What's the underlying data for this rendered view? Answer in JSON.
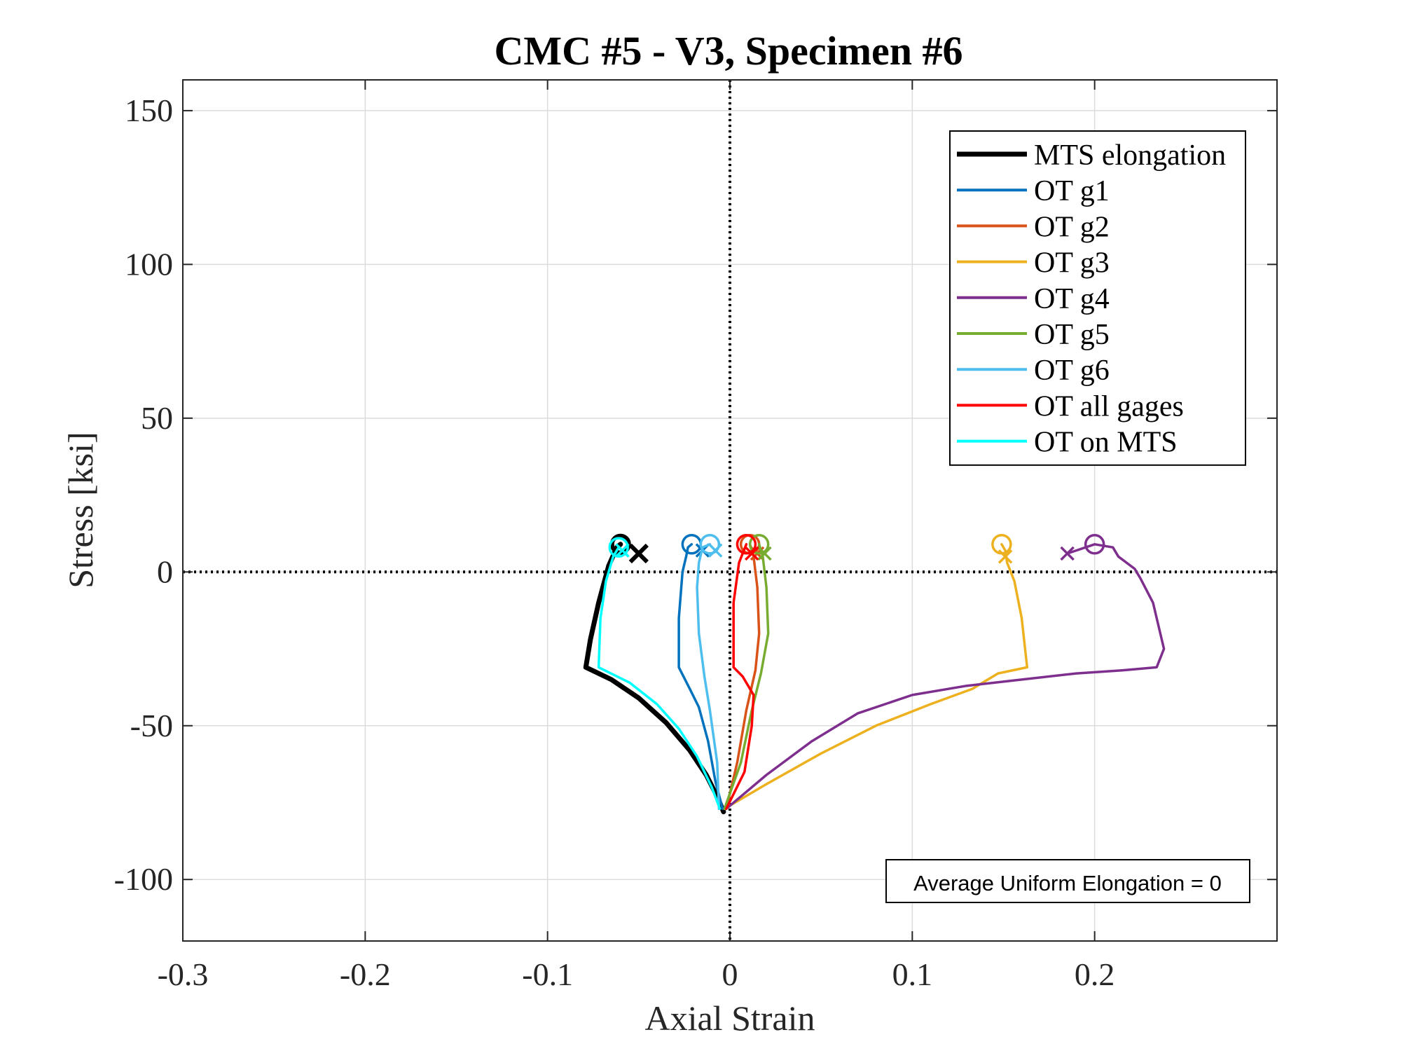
{
  "chart_data": {
    "type": "line",
    "title": "CMC #5 - V3, Specimen #6",
    "xlabel": "Axial Strain",
    "ylabel": "Stress [ksi]",
    "xlim": [
      -0.3,
      0.3
    ],
    "ylim": [
      -120,
      160
    ],
    "xticks": [
      -0.3,
      -0.2,
      -0.1,
      0,
      0.1,
      0.2
    ],
    "xtick_labels": [
      "-0.3",
      "-0.2",
      "-0.1",
      "0",
      "0.1",
      "0.2"
    ],
    "yticks": [
      -100,
      -50,
      0,
      50,
      100,
      150
    ],
    "ytick_labels": [
      "-100",
      "-50",
      "0",
      "50",
      "100",
      "150"
    ],
    "grid": true,
    "zero_lines": true,
    "legend_position": "top-right",
    "annotation": "Average Uniform Elongation = 0",
    "series": [
      {
        "name": "MTS elongation",
        "color": "#000000",
        "width": 7,
        "x": [
          -0.0035,
          -0.007,
          -0.013,
          -0.022,
          -0.035,
          -0.05,
          -0.065,
          -0.079,
          -0.0765,
          -0.072,
          -0.0665,
          -0.062,
          -0.06
        ],
        "y": [
          -78,
          -73,
          -66,
          -58,
          -49,
          -41,
          -35,
          -31,
          -22,
          -10,
          2,
          8,
          9
        ],
        "start": [
          -0.06,
          9
        ],
        "end": [
          -0.05,
          6
        ]
      },
      {
        "name": "OT g1",
        "color": "#0072BD",
        "width": 3.5,
        "x": [
          -0.004,
          -0.008,
          -0.012,
          -0.017,
          -0.022,
          -0.028,
          -0.028,
          -0.026,
          -0.024,
          -0.023,
          -0.021
        ],
        "y": [
          -77,
          -68,
          -55,
          -44,
          -38,
          -31,
          -15,
          0,
          5,
          8,
          9
        ],
        "start": [
          -0.021,
          9
        ],
        "end": [
          -0.015,
          7
        ]
      },
      {
        "name": "OT g2",
        "color": "#D95319",
        "width": 3.5,
        "x": [
          -0.002,
          0.004,
          0.009,
          0.014,
          0.016,
          0.015,
          0.013,
          0.011
        ],
        "y": [
          -77,
          -62,
          -45,
          -32,
          -20,
          -5,
          5,
          9
        ],
        "start": [
          0.011,
          9
        ],
        "end": [
          0.015,
          6
        ]
      },
      {
        "name": "OT g3",
        "color": "#EDB120",
        "width": 3.5,
        "x": [
          -0.003,
          0.02,
          0.05,
          0.08,
          0.11,
          0.133,
          0.147,
          0.163,
          0.16,
          0.156,
          0.152,
          0.151,
          0.149
        ],
        "y": [
          -77,
          -69,
          -59,
          -50,
          -43,
          -38,
          -33,
          -31,
          -15,
          -3,
          3,
          7,
          9
        ],
        "start": [
          0.149,
          9
        ],
        "end": [
          0.151,
          5
        ]
      },
      {
        "name": "OT g4",
        "color": "#7E2F8E",
        "width": 3.5,
        "x": [
          -0.002,
          0.02,
          0.045,
          0.07,
          0.1,
          0.13,
          0.16,
          0.19,
          0.215,
          0.234,
          0.238,
          0.232,
          0.225,
          0.222,
          0.213,
          0.21,
          0.2,
          0.19,
          0.185
        ],
        "y": [
          -77,
          -66,
          -55,
          -46,
          -40,
          -37,
          -35,
          -33,
          -32,
          -31,
          -25,
          -10,
          -2,
          1,
          5,
          8,
          9,
          7,
          6
        ],
        "start": [
          0.2,
          9
        ],
        "end": [
          0.185,
          6
        ]
      },
      {
        "name": "OT g5",
        "color": "#77AC30",
        "width": 3.5,
        "x": [
          -0.003,
          0.006,
          0.012,
          0.017,
          0.021,
          0.02,
          0.018,
          0.016
        ],
        "y": [
          -77,
          -62,
          -45,
          -33,
          -20,
          -5,
          5,
          9
        ],
        "start": [
          0.016,
          9
        ],
        "end": [
          0.019,
          6
        ]
      },
      {
        "name": "OT g6",
        "color": "#4DBEEE",
        "width": 3.5,
        "x": [
          -0.006,
          -0.007,
          -0.011,
          -0.014,
          -0.017,
          -0.018,
          -0.017,
          -0.015,
          -0.011
        ],
        "y": [
          -77,
          -62,
          -45,
          -34,
          -20,
          -5,
          3,
          8,
          9
        ],
        "start": [
          -0.011,
          9
        ],
        "end": [
          -0.008,
          7
        ]
      },
      {
        "name": "OT all gages",
        "color": "#FF0000",
        "width": 3.5,
        "x": [
          -0.002,
          0.008,
          0.012,
          0.013,
          0.007,
          0.002,
          0.002,
          0.005,
          0.009
        ],
        "y": [
          -77,
          -65,
          -50,
          -40,
          -34,
          -31,
          -10,
          3,
          9
        ],
        "start": [
          0.009,
          9
        ],
        "end": [
          0.012,
          6
        ]
      },
      {
        "name": "OT on MTS",
        "color": "#00FFFF",
        "width": 3.5,
        "x": [
          -0.0055,
          -0.01,
          -0.018,
          -0.028,
          -0.04,
          -0.055,
          -0.072,
          -0.071,
          -0.068,
          -0.064,
          -0.061
        ],
        "y": [
          -77,
          -70,
          -60,
          -51,
          -43,
          -36,
          -31,
          -15,
          -3,
          5,
          8
        ],
        "start": [
          -0.061,
          8
        ],
        "end": [
          -0.059,
          7
        ]
      }
    ]
  }
}
